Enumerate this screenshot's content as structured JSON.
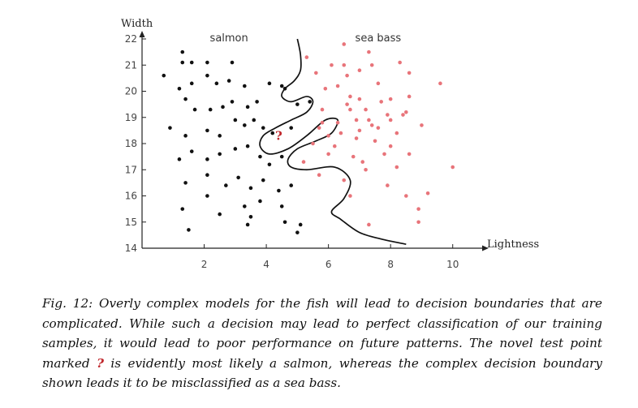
{
  "chart_data": {
    "type": "scatter",
    "xlabel": "Lightness",
    "ylabel": "Width",
    "xlim": [
      0,
      11
    ],
    "ylim": [
      14,
      22
    ],
    "xticks": [
      2,
      4,
      6,
      8,
      10
    ],
    "yticks": [
      14,
      15,
      16,
      17,
      18,
      19,
      20,
      21,
      22
    ],
    "grid": false,
    "series": [
      {
        "name": "salmon",
        "color": "#111111",
        "points": [
          [
            1.3,
            21.5
          ],
          [
            1.3,
            21.1
          ],
          [
            1.6,
            21.1
          ],
          [
            2.1,
            21.1
          ],
          [
            2.9,
            21.1
          ],
          [
            0.7,
            20.6
          ],
          [
            1.2,
            20.1
          ],
          [
            1.6,
            20.3
          ],
          [
            2.1,
            20.6
          ],
          [
            2.4,
            20.3
          ],
          [
            2.8,
            20.4
          ],
          [
            3.3,
            20.2
          ],
          [
            1.4,
            19.7
          ],
          [
            1.7,
            19.3
          ],
          [
            2.2,
            19.3
          ],
          [
            2.6,
            19.4
          ],
          [
            2.9,
            19.6
          ],
          [
            3.4,
            19.4
          ],
          [
            3.7,
            19.6
          ],
          [
            0.9,
            18.6
          ],
          [
            1.4,
            18.3
          ],
          [
            2.1,
            18.5
          ],
          [
            2.5,
            18.3
          ],
          [
            3.0,
            18.9
          ],
          [
            3.3,
            18.7
          ],
          [
            3.6,
            18.9
          ],
          [
            3.9,
            18.6
          ],
          [
            4.2,
            18.4
          ],
          [
            1.2,
            17.4
          ],
          [
            1.6,
            17.7
          ],
          [
            2.1,
            17.4
          ],
          [
            2.5,
            17.6
          ],
          [
            3.0,
            17.8
          ],
          [
            3.4,
            17.9
          ],
          [
            3.8,
            17.5
          ],
          [
            4.1,
            17.2
          ],
          [
            4.5,
            17.5
          ],
          [
            1.4,
            16.5
          ],
          [
            2.1,
            16.8
          ],
          [
            2.7,
            16.4
          ],
          [
            3.1,
            16.7
          ],
          [
            3.5,
            16.3
          ],
          [
            3.9,
            16.6
          ],
          [
            4.4,
            16.2
          ],
          [
            4.8,
            16.4
          ],
          [
            2.1,
            16.0
          ],
          [
            3.3,
            15.6
          ],
          [
            3.8,
            15.8
          ],
          [
            4.5,
            15.6
          ],
          [
            1.3,
            15.5
          ],
          [
            2.5,
            15.3
          ],
          [
            3.5,
            15.2
          ],
          [
            4.6,
            15.0
          ],
          [
            3.4,
            14.9
          ],
          [
            5.1,
            14.9
          ],
          [
            1.5,
            14.7
          ],
          [
            5.0,
            14.6
          ],
          [
            4.6,
            20.1
          ],
          [
            5.0,
            19.5
          ],
          [
            5.4,
            19.6
          ],
          [
            4.8,
            18.6
          ],
          [
            4.5,
            20.2
          ],
          [
            4.1,
            20.3
          ]
        ]
      },
      {
        "name": "sea bass",
        "color": "#e8747a",
        "points": [
          [
            6.5,
            21.8
          ],
          [
            7.3,
            21.5
          ],
          [
            5.3,
            21.3
          ],
          [
            6.1,
            21.0
          ],
          [
            6.5,
            21.0
          ],
          [
            7.4,
            21.0
          ],
          [
            8.3,
            21.1
          ],
          [
            5.6,
            20.7
          ],
          [
            6.6,
            20.6
          ],
          [
            7.0,
            20.8
          ],
          [
            8.6,
            20.7
          ],
          [
            9.6,
            20.3
          ],
          [
            6.3,
            20.2
          ],
          [
            7.6,
            20.3
          ],
          [
            5.9,
            20.1
          ],
          [
            6.7,
            19.8
          ],
          [
            7.0,
            19.7
          ],
          [
            7.7,
            19.6
          ],
          [
            8.0,
            19.7
          ],
          [
            8.6,
            19.8
          ],
          [
            5.8,
            19.3
          ],
          [
            6.7,
            19.3
          ],
          [
            7.2,
            19.3
          ],
          [
            7.9,
            19.1
          ],
          [
            8.4,
            19.1
          ],
          [
            5.8,
            18.8
          ],
          [
            6.3,
            18.8
          ],
          [
            6.9,
            18.9
          ],
          [
            7.3,
            18.9
          ],
          [
            7.6,
            18.6
          ],
          [
            8.2,
            18.4
          ],
          [
            9.0,
            18.7
          ],
          [
            6.4,
            18.4
          ],
          [
            6.9,
            18.2
          ],
          [
            7.5,
            18.1
          ],
          [
            8.0,
            17.9
          ],
          [
            6.0,
            17.6
          ],
          [
            6.8,
            17.5
          ],
          [
            7.8,
            17.6
          ],
          [
            8.6,
            17.6
          ],
          [
            7.2,
            17.0
          ],
          [
            8.2,
            17.1
          ],
          [
            5.2,
            17.3
          ],
          [
            5.7,
            16.8
          ],
          [
            6.5,
            16.6
          ],
          [
            7.9,
            16.4
          ],
          [
            8.5,
            16.0
          ],
          [
            9.2,
            16.1
          ],
          [
            10.0,
            17.1
          ],
          [
            6.7,
            16.0
          ],
          [
            8.9,
            15.5
          ],
          [
            7.3,
            14.9
          ],
          [
            8.9,
            15.0
          ],
          [
            6.6,
            19.5
          ],
          [
            5.7,
            18.6
          ],
          [
            6.0,
            18.3
          ],
          [
            7.4,
            18.7
          ],
          [
            8.0,
            18.9
          ],
          [
            8.5,
            19.2
          ],
          [
            7.0,
            18.5
          ],
          [
            5.5,
            18.0
          ],
          [
            6.2,
            17.9
          ],
          [
            7.1,
            17.3
          ]
        ]
      }
    ],
    "annotations": [
      {
        "text": "salmon",
        "x": 2.8,
        "y": 21.9
      },
      {
        "text": "sea bass",
        "x": 7.6,
        "y": 21.9
      },
      {
        "text": "?",
        "x": 4.4,
        "y": 18.3,
        "color": "#c0262b"
      }
    ],
    "boundary": [
      [
        5.0,
        22.0
      ],
      [
        5.1,
        21.4
      ],
      [
        5.1,
        20.8
      ],
      [
        4.9,
        20.4
      ],
      [
        4.6,
        20.1
      ],
      [
        4.5,
        19.8
      ],
      [
        4.8,
        19.6
      ],
      [
        5.3,
        19.8
      ],
      [
        5.5,
        19.6
      ],
      [
        5.3,
        19.2
      ],
      [
        4.8,
        18.9
      ],
      [
        4.3,
        18.6
      ],
      [
        3.9,
        18.3
      ],
      [
        3.8,
        17.9
      ],
      [
        4.1,
        17.6
      ],
      [
        4.7,
        17.8
      ],
      [
        5.3,
        18.3
      ],
      [
        5.9,
        18.9
      ],
      [
        6.3,
        18.9
      ],
      [
        6.1,
        18.4
      ],
      [
        5.6,
        18.1
      ],
      [
        5.0,
        17.8
      ],
      [
        4.7,
        17.4
      ],
      [
        4.8,
        17.1
      ],
      [
        5.3,
        17.0
      ],
      [
        6.2,
        17.1
      ],
      [
        6.7,
        16.6
      ],
      [
        6.5,
        15.9
      ],
      [
        6.1,
        15.4
      ],
      [
        6.4,
        15.1
      ],
      [
        7.0,
        14.6
      ],
      [
        7.7,
        14.35
      ],
      [
        8.5,
        14.15
      ]
    ]
  },
  "caption": {
    "prefix": "Fig. 12: Overly complex models for the fish will lead to decision boundaries that are complicated. While such a decision may lead to perfect classification of our training samples, it would lead to poor performance on future patterns. The novel test point marked ",
    "qmark": "?",
    "suffix": " is evidently most likely a salmon, whereas the complex decision boundary shown leads it to be misclassified as a sea bass."
  }
}
